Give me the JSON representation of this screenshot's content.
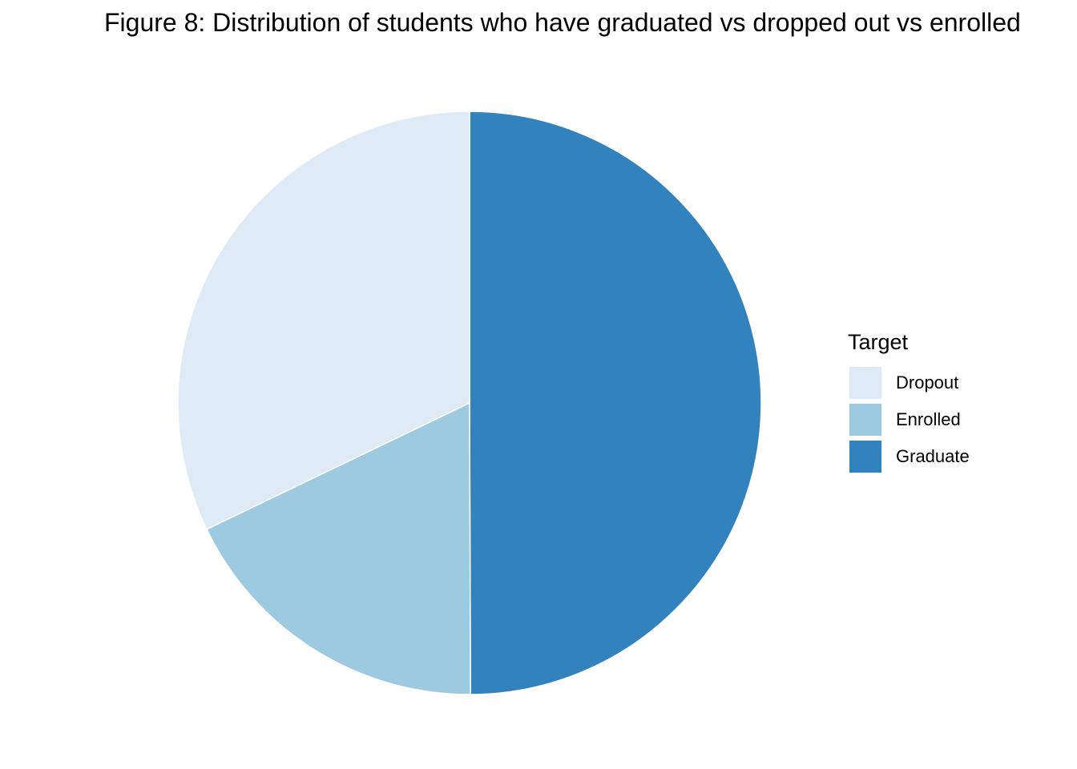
{
  "chart_data": {
    "type": "pie",
    "title": "Figure 8: Distribution of students who have graduated vs dropped out vs enrolled",
    "legend_title": "Target",
    "legend_position": "right",
    "slices": [
      {
        "label": "Dropout",
        "value": 32.1,
        "color": "#deebf7"
      },
      {
        "label": "Enrolled",
        "value": 17.9,
        "color": "#9ecae1"
      },
      {
        "label": "Graduate",
        "value": 49.9,
        "color": "#3182bd"
      }
    ]
  }
}
